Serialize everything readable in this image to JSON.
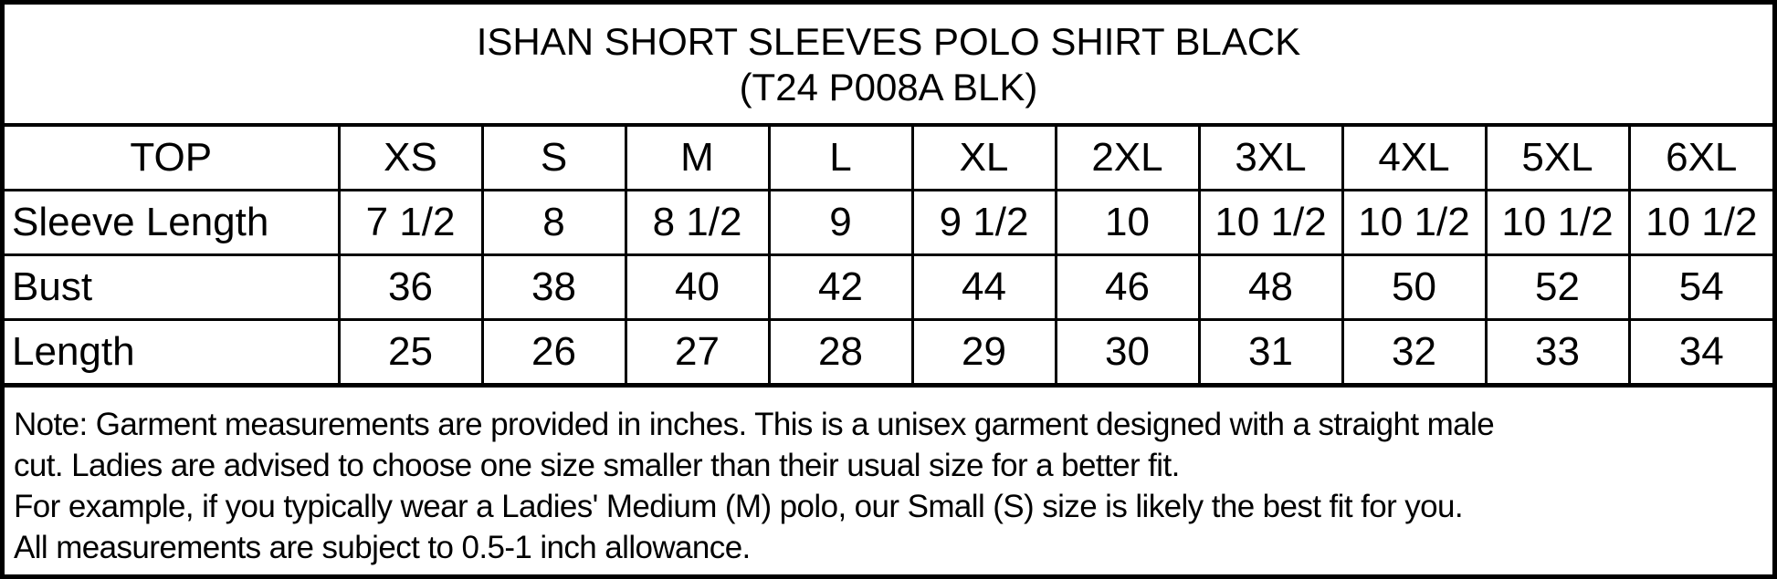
{
  "title": {
    "line1": "ISHAN SHORT SLEEVES POLO SHIRT BLACK",
    "line2": "(T24 P008A BLK)"
  },
  "table": {
    "header": [
      "TOP",
      "XS",
      "S",
      "M",
      "L",
      "XL",
      "2XL",
      "3XL",
      "4XL",
      "5XL",
      "6XL"
    ],
    "rows": [
      {
        "label": "Sleeve Length",
        "values": [
          "7 1/2",
          "8",
          "8 1/2",
          "9",
          "9 1/2",
          "10",
          "10 1/2",
          "10 1/2",
          "10 1/2",
          "10 1/2"
        ]
      },
      {
        "label": "Bust",
        "values": [
          "36",
          "38",
          "40",
          "42",
          "44",
          "46",
          "48",
          "50",
          "52",
          "54"
        ]
      },
      {
        "label": "Length",
        "values": [
          "25",
          "26",
          "27",
          "28",
          "29",
          "30",
          "31",
          "32",
          "33",
          "34"
        ]
      }
    ]
  },
  "note": {
    "lines": [
      "Note: Garment measurements are provided in inches. This is a unisex garment designed with a straight male",
      "cut. Ladies are advised to choose one size smaller than their usual size for a better fit.",
      "For example, if you typically wear a Ladies' Medium (M) polo, our Small (S) size is likely the best fit for you.",
      "All measurements are subject to 0.5-1 inch allowance."
    ]
  }
}
